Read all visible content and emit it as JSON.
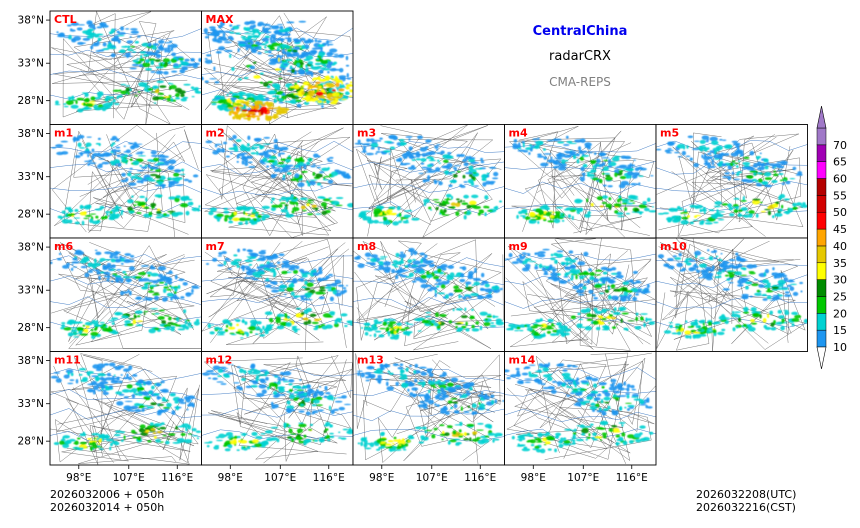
{
  "header": {
    "region": "CentralChina",
    "variable": "radarCRX",
    "model": "CMA-REPS"
  },
  "panels": [
    "CTL",
    "MAX",
    "m1",
    "m2",
    "m3",
    "m4",
    "m5",
    "m6",
    "m7",
    "m8",
    "m9",
    "m10",
    "m11",
    "m12",
    "m13",
    "m14"
  ],
  "axes": {
    "lat_labels": [
      "38°N",
      "33°N",
      "28°N"
    ],
    "lon_labels": [
      "98°E",
      "107°E",
      "116°E"
    ]
  },
  "colorbar": {
    "levels": [
      "10",
      "15",
      "20",
      "25",
      "30",
      "35",
      "40",
      "45",
      "50",
      "55",
      "60",
      "65",
      "70"
    ],
    "colors": [
      "#1e96f0",
      "#00d2d2",
      "#00c800",
      "#008c00",
      "#ffff00",
      "#e6c800",
      "#ffa500",
      "#ff0000",
      "#d20000",
      "#b40000",
      "#ff00ff",
      "#a000b4",
      "#a078c8"
    ],
    "below_color": "#ffffff",
    "above_color": "#a078c8"
  },
  "footer": {
    "init_utc": "2026032006  +  050h",
    "init_cst": "2026032014  +  050h",
    "valid_utc": "2026032208(UTC)",
    "valid_cst": "2026032216(CST)"
  },
  "colors": {
    "panel_label": "#ff0000",
    "region_title": "#0000ee",
    "model_title": "#808080"
  }
}
